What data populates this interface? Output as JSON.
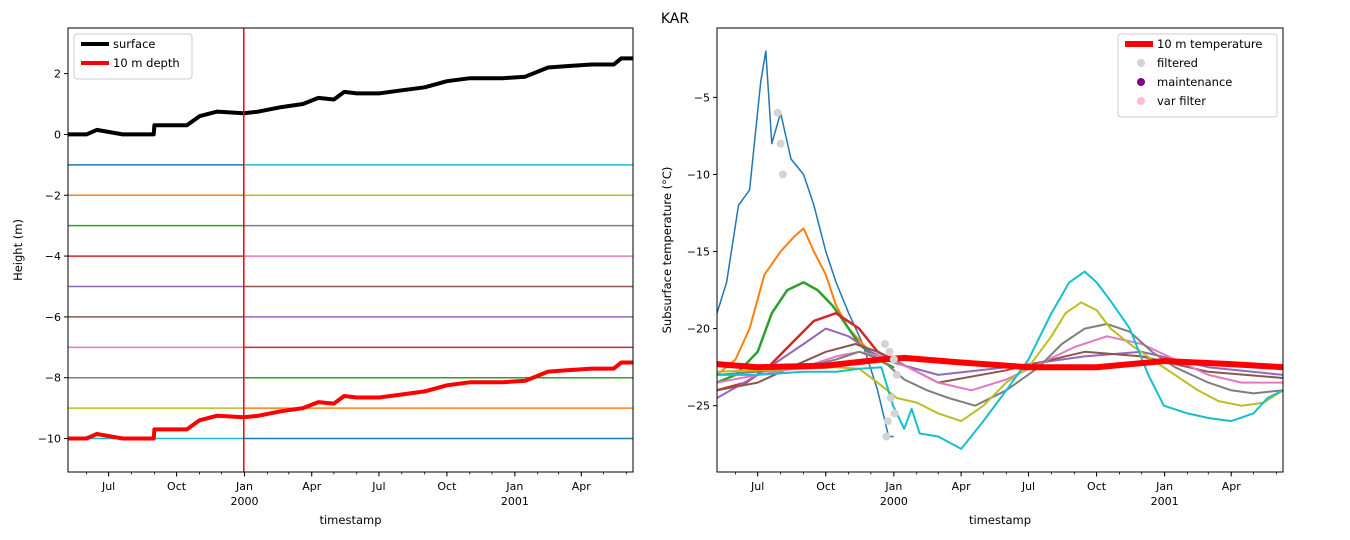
{
  "suptitle": "KAR",
  "chart_data": [
    {
      "type": "line",
      "xlabel": "timestamp",
      "ylabel": "Height (m)",
      "xlim": [
        "1999-05-07",
        "2001-06-10"
      ],
      "ylim": [
        -11.1,
        3.5
      ],
      "yticks": [
        2,
        0,
        -2,
        -4,
        -6,
        -8,
        -10
      ],
      "xticks": [
        {
          "date": "1999-07-01",
          "label": "Jul",
          "sublabel": ""
        },
        {
          "date": "1999-10-01",
          "label": "Oct",
          "sublabel": ""
        },
        {
          "date": "2000-01-01",
          "label": "Jan",
          "sublabel": "2000"
        },
        {
          "date": "2000-04-01",
          "label": "Apr",
          "sublabel": ""
        },
        {
          "date": "2000-07-01",
          "label": "Jul",
          "sublabel": ""
        },
        {
          "date": "2000-10-01",
          "label": "Oct",
          "sublabel": ""
        },
        {
          "date": "2001-01-01",
          "label": "Jan",
          "sublabel": "2001"
        },
        {
          "date": "2001-04-01",
          "label": "Apr",
          "sublabel": ""
        }
      ],
      "vline": {
        "date": "1999-12-31",
        "color": "#ff0000"
      },
      "legend": {
        "location": "upper-left",
        "entries": [
          {
            "label": "surface",
            "color": "#000000"
          },
          {
            "label": "10 m depth",
            "color": "#ff0000"
          }
        ]
      },
      "series": [
        {
          "name": "surface",
          "color": "#000000",
          "width": 4,
          "x": [
            "1999-05-07",
            "1999-06-01",
            "1999-06-15",
            "1999-07-20",
            "1999-08-31",
            "1999-09-01",
            "1999-10-15",
            "1999-11-01",
            "1999-11-25",
            "1999-12-31",
            "2000-01-20",
            "2000-02-20",
            "2000-03-20",
            "2000-04-10",
            "2000-05-01",
            "2000-05-15",
            "2000-06-01",
            "2000-07-01",
            "2000-08-01",
            "2000-09-01",
            "2000-10-01",
            "2000-11-01",
            "2000-12-15",
            "2001-01-15",
            "2001-02-15",
            "2001-03-15",
            "2001-04-15",
            "2001-05-15",
            "2001-05-25",
            "2001-06-10"
          ],
          "y": [
            0.0,
            0.0,
            0.15,
            0.0,
            0.0,
            0.3,
            0.3,
            0.6,
            0.75,
            0.7,
            0.75,
            0.9,
            1.0,
            1.2,
            1.15,
            1.4,
            1.35,
            1.35,
            1.45,
            1.55,
            1.75,
            1.85,
            1.85,
            1.9,
            2.2,
            2.25,
            2.3,
            2.3,
            2.5,
            2.5
          ]
        },
        {
          "name": "10 m depth",
          "color": "#ff0000",
          "width": 4,
          "x": [
            "1999-05-07",
            "1999-06-01",
            "1999-06-15",
            "1999-07-20",
            "1999-08-31",
            "1999-09-01",
            "1999-10-15",
            "1999-11-01",
            "1999-11-25",
            "1999-12-31",
            "2000-01-20",
            "2000-02-20",
            "2000-03-20",
            "2000-04-10",
            "2000-05-01",
            "2000-05-15",
            "2000-06-01",
            "2000-07-01",
            "2000-08-01",
            "2000-09-01",
            "2000-10-01",
            "2000-11-01",
            "2000-12-15",
            "2001-01-15",
            "2001-02-15",
            "2001-03-15",
            "2001-04-15",
            "2001-05-15",
            "2001-05-25",
            "2001-06-10"
          ],
          "y": [
            -10.0,
            -10.0,
            -9.85,
            -10.0,
            -10.0,
            -9.7,
            -9.7,
            -9.4,
            -9.25,
            -9.3,
            -9.25,
            -9.1,
            -9.0,
            -8.8,
            -8.85,
            -8.6,
            -8.65,
            -8.65,
            -8.55,
            -8.45,
            -8.25,
            -8.15,
            -8.15,
            -8.1,
            -7.8,
            -7.75,
            -7.7,
            -7.7,
            -7.5,
            -7.5
          ]
        }
      ],
      "sensor_depths": [
        {
          "color": "#1f77b4",
          "before": -1,
          "after": -10
        },
        {
          "color": "#ff7f0e",
          "before": -2,
          "after": -9
        },
        {
          "color": "#2ca02c",
          "before": -3,
          "after": -8
        },
        {
          "color": "#d62728",
          "before": -4,
          "after": -7
        },
        {
          "color": "#9467bd",
          "before": -5,
          "after": -6
        },
        {
          "color": "#8c564b",
          "before": -6,
          "after": -5
        },
        {
          "color": "#e377c2",
          "before": -7,
          "after": -4
        },
        {
          "color": "#7f7f7f",
          "before": -8,
          "after": -3
        },
        {
          "color": "#bcbd22",
          "before": -9,
          "after": -2
        },
        {
          "color": "#17becf",
          "before": -10,
          "after": -1
        }
      ]
    },
    {
      "type": "line",
      "xlabel": "timestamp",
      "ylabel": "Subsurface temperature (°C)",
      "xlim": [
        "1999-05-07",
        "2001-06-10"
      ],
      "ylim": [
        -29.3,
        -0.5
      ],
      "yticks": [
        -5,
        -10,
        -15,
        -20,
        -25
      ],
      "xticks": [
        {
          "date": "1999-07-01",
          "label": "Jul",
          "sublabel": ""
        },
        {
          "date": "1999-10-01",
          "label": "Oct",
          "sublabel": ""
        },
        {
          "date": "2000-01-01",
          "label": "Jan",
          "sublabel": "2000"
        },
        {
          "date": "2000-04-01",
          "label": "Apr",
          "sublabel": ""
        },
        {
          "date": "2000-07-01",
          "label": "Jul",
          "sublabel": ""
        },
        {
          "date": "2000-10-01",
          "label": "Oct",
          "sublabel": ""
        },
        {
          "date": "2001-01-01",
          "label": "Jan",
          "sublabel": "2001"
        },
        {
          "date": "2001-04-01",
          "label": "Apr",
          "sublabel": ""
        }
      ],
      "legend": {
        "location": "upper-right",
        "entries": [
          {
            "label": "10 m temperature",
            "color": "#ff0000",
            "kind": "line"
          },
          {
            "label": "filtered",
            "color": "#d3d3d3",
            "kind": "dot"
          },
          {
            "label": "maintenance",
            "color": "#800080",
            "kind": "dot"
          },
          {
            "label": "var filter",
            "color": "#ffc0cb",
            "kind": "dot"
          }
        ]
      },
      "series": [
        {
          "color": "#1f77b4",
          "width": 1.5,
          "x": [
            "1999-05-07",
            "1999-05-20",
            "1999-06-05",
            "1999-06-20",
            "1999-07-05",
            "1999-07-12",
            "1999-07-20",
            "1999-08-01",
            "1999-08-15",
            "1999-09-01",
            "1999-09-15",
            "1999-10-01",
            "1999-10-15",
            "1999-11-01",
            "1999-11-20",
            "1999-12-10",
            "1999-12-25",
            "1999-12-31"
          ],
          "y": [
            -19,
            -17,
            -12,
            -11,
            -4,
            -2,
            -8,
            -6,
            -9,
            -10,
            -12,
            -15,
            -17,
            -19,
            -21,
            -24,
            -27,
            -27
          ]
        },
        {
          "color": "#ff7f0e",
          "width": 2,
          "x": [
            "1999-05-07",
            "1999-06-01",
            "1999-06-20",
            "1999-07-10",
            "1999-08-01",
            "1999-08-20",
            "1999-09-01",
            "1999-09-15",
            "1999-10-01",
            "1999-10-15",
            "1999-11-01",
            "1999-11-20",
            "1999-12-10",
            "1999-12-31"
          ],
          "y": [
            -23,
            -22,
            -20,
            -16.5,
            -15,
            -14,
            -13.5,
            -15,
            -16.5,
            -18.5,
            -20,
            -21,
            -22,
            -22
          ]
        },
        {
          "color": "#2ca02c",
          "width": 2.5,
          "x": [
            "1999-05-07",
            "1999-06-01",
            "1999-07-01",
            "1999-07-20",
            "1999-08-10",
            "1999-09-01",
            "1999-09-20",
            "1999-10-10",
            "1999-10-25",
            "1999-11-15",
            "1999-12-10",
            "1999-12-31"
          ],
          "y": [
            -23.5,
            -23,
            -21.5,
            -19,
            -17.5,
            -17,
            -17.5,
            -18.5,
            -19.5,
            -21,
            -22,
            -22.5
          ]
        },
        {
          "color": "#d62728",
          "width": 2.5,
          "x": [
            "1999-05-07",
            "1999-06-15",
            "1999-07-15",
            "1999-08-15",
            "1999-09-15",
            "1999-10-15",
            "1999-11-15",
            "1999-12-10",
            "1999-12-31"
          ],
          "y": [
            -24,
            -23.5,
            -22.5,
            -21,
            -19.5,
            -19,
            -20,
            -21.5,
            -22
          ]
        },
        {
          "color": "#9467bd",
          "width": 2,
          "x": [
            "1999-05-07",
            "1999-07-01",
            "1999-08-01",
            "1999-09-01",
            "1999-10-01",
            "1999-11-01",
            "1999-12-01",
            "1999-12-31",
            "2000-03-01",
            "2000-06-01",
            "2000-09-15",
            "2000-12-01",
            "2001-03-01",
            "2001-06-10"
          ],
          "y": [
            -24.5,
            -23,
            -22,
            -21,
            -20,
            -20.5,
            -21.5,
            -22.2,
            -23,
            -22.5,
            -21.8,
            -21.5,
            -22.5,
            -23
          ]
        },
        {
          "color": "#8c564b",
          "width": 2,
          "x": [
            "1999-05-07",
            "1999-07-01",
            "1999-08-15",
            "1999-10-01",
            "1999-11-10",
            "1999-12-10",
            "1999-12-31",
            "2000-03-01",
            "2000-06-01",
            "2000-09-15",
            "2000-12-01",
            "2001-03-01",
            "2001-06-10"
          ],
          "y": [
            -24,
            -23.5,
            -22.5,
            -21.5,
            -21,
            -21.5,
            -22,
            -23.5,
            -22.7,
            -21.5,
            -21.8,
            -22.8,
            -23.2
          ]
        },
        {
          "color": "#e377c2",
          "width": 2,
          "x": [
            "1999-05-07",
            "1999-07-01",
            "1999-09-01",
            "1999-10-15",
            "1999-11-15",
            "1999-12-15",
            "2000-01-20",
            "2000-03-01",
            "2000-04-15",
            "2000-06-01",
            "2000-07-15",
            "2000-09-01",
            "2000-10-15",
            "2000-12-01",
            "2001-01-15",
            "2001-03-01",
            "2001-04-15",
            "2001-06-10"
          ],
          "y": [
            -23.5,
            -23,
            -22.5,
            -21.8,
            -21.5,
            -21.8,
            -22.5,
            -23.5,
            -24,
            -23.3,
            -22.3,
            -21.2,
            -20.5,
            -21,
            -22,
            -23,
            -23.5,
            -23.5
          ]
        },
        {
          "color": "#7f7f7f",
          "width": 2,
          "x": [
            "1999-05-07",
            "1999-07-01",
            "1999-09-01",
            "1999-10-15",
            "1999-11-15",
            "1999-12-15",
            "2000-01-15",
            "2000-02-15",
            "2000-03-15",
            "2000-04-20",
            "2000-06-01",
            "2000-07-15",
            "2000-08-15",
            "2000-09-15",
            "2000-10-15",
            "2000-11-15",
            "2000-12-15",
            "2001-01-15",
            "2001-03-01",
            "2001-04-01",
            "2001-05-01",
            "2001-06-10"
          ],
          "y": [
            -23,
            -22.8,
            -22.5,
            -22,
            -21.5,
            -22,
            -23.3,
            -24,
            -24.5,
            -25,
            -24,
            -22.5,
            -21,
            -20,
            -19.7,
            -20.2,
            -21.5,
            -22.5,
            -23.5,
            -24,
            -24.2,
            -24
          ]
        },
        {
          "color": "#bcbd22",
          "width": 2,
          "x": [
            "1999-05-07",
            "1999-07-01",
            "1999-09-01",
            "1999-10-15",
            "1999-11-15",
            "1999-12-10",
            "2000-01-05",
            "2000-02-01",
            "2000-03-01",
            "2000-04-01",
            "2000-05-01",
            "2000-06-01",
            "2000-07-01",
            "2000-08-01",
            "2000-08-20",
            "2000-09-10",
            "2000-10-01",
            "2000-10-20",
            "2000-11-15",
            "2000-12-15",
            "2001-01-15",
            "2001-02-15",
            "2001-03-15",
            "2001-04-15",
            "2001-05-15",
            "2001-06-10"
          ],
          "y": [
            -22.8,
            -22.7,
            -22.6,
            -22.5,
            -22.6,
            -23.5,
            -24.5,
            -24.8,
            -25.5,
            -26,
            -25,
            -23.5,
            -22.5,
            -20.5,
            -19,
            -18.3,
            -18.8,
            -20,
            -21,
            -22,
            -23,
            -24,
            -24.7,
            -25,
            -24.8,
            -24
          ]
        },
        {
          "color": "#17becf",
          "width": 2,
          "x": [
            "1999-05-07",
            "1999-07-01",
            "1999-09-01",
            "1999-10-15",
            "1999-11-15",
            "1999-12-15",
            "1999-12-31",
            "2000-01-15",
            "2000-01-25",
            "2000-02-05",
            "2000-03-01",
            "2000-04-01",
            "2000-05-01",
            "2000-06-01",
            "2000-07-01",
            "2000-08-01",
            "2000-08-25",
            "2000-09-15",
            "2000-10-01",
            "2000-10-20",
            "2000-11-15",
            "2000-12-10",
            "2000-12-31",
            "2001-02-01",
            "2001-03-01",
            "2001-04-01",
            "2001-05-01",
            "2001-05-20",
            "2001-06-10"
          ],
          "y": [
            -23,
            -23,
            -22.8,
            -22.8,
            -22.6,
            -22.5,
            -25,
            -26.5,
            -25.2,
            -26.8,
            -27,
            -27.8,
            -26,
            -24,
            -22,
            -19,
            -17,
            -16.3,
            -17,
            -18.2,
            -20,
            -23,
            -25,
            -25.5,
            -25.8,
            -26,
            -25.5,
            -24.5,
            -24
          ]
        },
        {
          "color": "#ff0000",
          "width": 6,
          "x": [
            "1999-05-07",
            "1999-07-01",
            "1999-10-01",
            "1999-12-15",
            "2000-01-15",
            "2000-04-01",
            "2000-07-01",
            "2000-10-01",
            "2001-01-01",
            "2001-04-01",
            "2001-06-10"
          ],
          "y": [
            -22.3,
            -22.5,
            -22.4,
            -22.0,
            -21.9,
            -22.2,
            -22.5,
            -22.5,
            -22.1,
            -22.3,
            -22.5
          ]
        }
      ],
      "filtered": {
        "color": "#d3d3d3",
        "x": [
          "1999-07-28",
          "1999-08-01",
          "1999-08-04",
          "1999-12-20",
          "1999-12-26",
          "2000-01-01",
          "2000-01-05",
          "1999-12-28",
          "1999-12-24",
          "1999-12-22",
          "2000-01-02"
        ],
        "y": [
          -6,
          -8,
          -10,
          -21,
          -21.5,
          -22,
          -23,
          -24.5,
          -26,
          -27,
          -25.5
        ]
      }
    }
  ]
}
